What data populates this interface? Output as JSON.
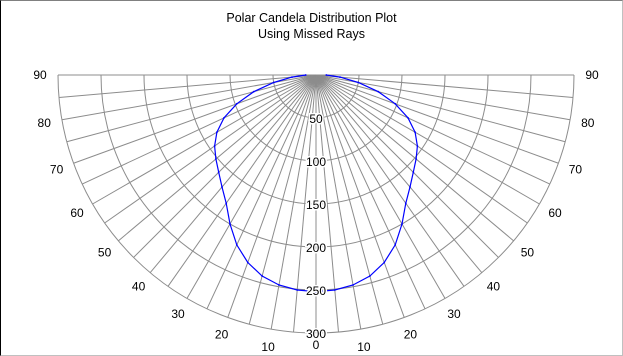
{
  "chart_data": {
    "type": "polar",
    "title": "Polar Candela Distribution Plot",
    "subtitle": "Using Missed Rays",
    "radial_ticks": [
      "50",
      "100",
      "150",
      "200",
      "250",
      "300"
    ],
    "radial_max": 300,
    "angle_tick_labels_left": [
      "90",
      "80",
      "70",
      "60",
      "50",
      "40",
      "30",
      "20",
      "10"
    ],
    "angle_tick_labels_right": [
      "90",
      "80",
      "70",
      "60",
      "50",
      "40",
      "30",
      "20",
      "10"
    ],
    "angle_tick_label_bottom": "0",
    "angle_range_deg": [
      -90,
      90
    ],
    "spoke_step_deg": 5,
    "grid": true,
    "series": [
      {
        "color": "#0000ff",
        "angle_deg": [
          -90,
          -85,
          -80,
          -75,
          -70,
          -65,
          -60,
          -55,
          -50,
          -45,
          -40,
          -35,
          -30,
          -25,
          -20,
          -15,
          -10,
          -5,
          0,
          5,
          10,
          15,
          20,
          25,
          30,
          35,
          40,
          45,
          50,
          55,
          60,
          65,
          70,
          75,
          80,
          85,
          90
        ],
        "candela": [
          12,
          28,
          50,
          75,
          98,
          118,
          133,
          144,
          152,
          160,
          170,
          182,
          200,
          218,
          232,
          242,
          248,
          251,
          252,
          251,
          248,
          242,
          232,
          218,
          200,
          182,
          170,
          160,
          152,
          144,
          133,
          118,
          98,
          75,
          50,
          28,
          12
        ]
      }
    ]
  }
}
